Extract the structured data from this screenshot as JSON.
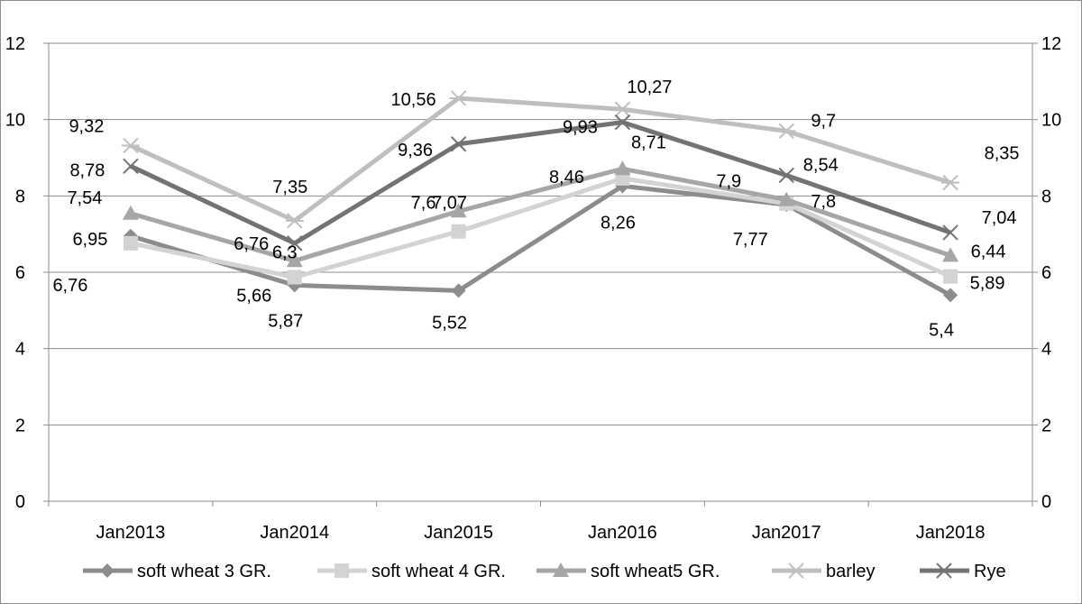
{
  "chart_data": {
    "type": "line",
    "title": "",
    "xlabel": "",
    "ylabel": "",
    "categories": [
      "Jan2013",
      "Jan2014",
      "Jan2015",
      "Jan2016",
      "Jan2017",
      "Jan2018"
    ],
    "ylim": [
      0,
      12
    ],
    "yticks": [
      0,
      2,
      4,
      6,
      8,
      10,
      12
    ],
    "ytick_labels": [
      "0",
      "2",
      "4",
      "6",
      "8",
      "10",
      "12"
    ],
    "secondary_yticks": [
      0,
      2,
      4,
      6,
      8,
      10,
      12
    ],
    "secondary_ytick_labels": [
      "0",
      "2",
      "4",
      "6",
      "8",
      "10",
      "12"
    ],
    "grid": true,
    "legend_position": "bottom",
    "series": [
      {
        "name": "soft wheat 3 GR.",
        "values": [
          6.95,
          5.66,
          5.52,
          8.26,
          7.77,
          5.4
        ],
        "labels": [
          "6,95",
          "5,66",
          "5,52",
          "8,26",
          "7,77",
          "5,4"
        ],
        "color": "#8c8c8c",
        "marker": "diamond"
      },
      {
        "name": "soft wheat 4 GR.",
        "values": [
          6.76,
          5.87,
          7.07,
          8.46,
          7.8,
          5.89
        ],
        "labels": [
          "6,76",
          "5,87",
          "7,07",
          "8,46",
          "7,8",
          "5,89"
        ],
        "color": "#d3d3d3",
        "marker": "square"
      },
      {
        "name": "soft wheat5 GR.",
        "values": [
          7.54,
          6.3,
          7.6,
          8.71,
          7.9,
          6.44
        ],
        "labels": [
          "7,54",
          "6,3",
          "7,6",
          "8,71",
          "7,9",
          "6,44"
        ],
        "color": "#a6a6a6",
        "marker": "triangle"
      },
      {
        "name": "barley",
        "values": [
          9.32,
          7.35,
          10.56,
          10.27,
          9.7,
          8.35
        ],
        "labels": [
          "9,32",
          "7,35",
          "10,56",
          "10,27",
          "9,7",
          "8,35"
        ],
        "color": "#bfbfbf",
        "marker": "asterisk"
      },
      {
        "name": "Rye",
        "values": [
          8.78,
          6.76,
          9.36,
          9.93,
          8.54,
          7.04
        ],
        "labels": [
          "8,78",
          "6,76",
          "9,36",
          "9,93",
          "8,54",
          "7,04"
        ],
        "color": "#737373",
        "marker": "x"
      }
    ]
  }
}
